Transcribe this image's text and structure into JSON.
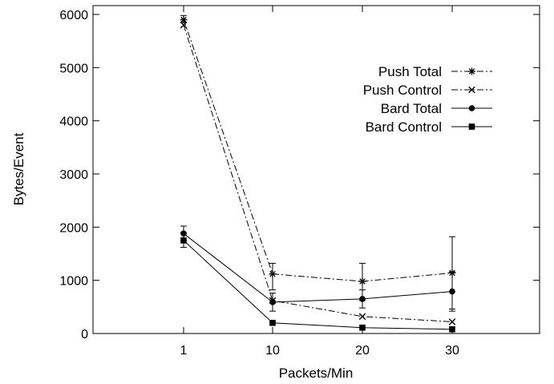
{
  "chart_data": {
    "type": "line",
    "title": "",
    "xlabel": "Packets/Min",
    "ylabel": "Bytes/Event",
    "categories": [
      "1",
      "10",
      "20",
      "30"
    ],
    "yticks": [
      0,
      1000,
      2000,
      3000,
      4000,
      5000,
      6000
    ],
    "ylim": [
      0,
      6000
    ],
    "grid": false,
    "legend_position": "top-right",
    "series": [
      {
        "name": "Push Total",
        "marker": "asterisk",
        "line_style": "dash-dot",
        "values": [
          5900,
          1120,
          980,
          1140
        ],
        "errors": [
          [
            5850,
            5980
          ],
          [
            820,
            1320
          ],
          [
            620,
            1320
          ],
          [
            460,
            1820
          ]
        ]
      },
      {
        "name": "Push Control",
        "marker": "x",
        "line_style": "dash-dot",
        "values": [
          5800,
          620,
          320,
          220
        ],
        "errors": null
      },
      {
        "name": "Bard Total",
        "marker": "circle",
        "line_style": "solid",
        "values": [
          1880,
          590,
          650,
          790
        ],
        "errors": [
          [
            1750,
            2020
          ],
          [
            420,
            760
          ],
          [
            480,
            820
          ],
          [
            420,
            1160
          ]
        ]
      },
      {
        "name": "Bard Control",
        "marker": "square",
        "line_style": "solid",
        "values": [
          1750,
          200,
          110,
          80
        ],
        "errors": [
          [
            1620,
            1900
          ],
          null,
          null,
          null
        ]
      }
    ]
  }
}
